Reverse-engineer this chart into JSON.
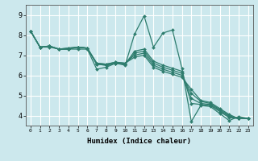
{
  "xlabel": "Humidex (Indice chaleur)",
  "bg_color": "#cce8ed",
  "grid_color": "#ffffff",
  "line_color": "#2e7d6e",
  "xlim": [
    -0.5,
    23.5
  ],
  "ylim": [
    3.5,
    9.5
  ],
  "series": [
    [
      8.2,
      7.4,
      7.4,
      7.3,
      7.3,
      7.3,
      7.3,
      6.3,
      6.4,
      6.6,
      6.5,
      8.05,
      8.95,
      7.4,
      8.1,
      8.25,
      6.35,
      3.7,
      4.5,
      4.45,
      4.1,
      3.75,
      3.95,
      3.85
    ],
    [
      8.2,
      7.4,
      7.45,
      7.3,
      7.3,
      7.4,
      7.35,
      6.55,
      6.5,
      6.6,
      6.55,
      7.2,
      7.3,
      6.7,
      6.5,
      6.35,
      6.2,
      4.6,
      4.55,
      4.5,
      4.2,
      3.9,
      3.85,
      3.85
    ],
    [
      8.2,
      7.4,
      7.45,
      7.3,
      7.3,
      7.4,
      7.35,
      6.55,
      6.5,
      6.6,
      6.55,
      7.1,
      7.2,
      6.6,
      6.4,
      6.25,
      6.1,
      4.85,
      4.6,
      4.55,
      4.25,
      3.95,
      3.85,
      3.85
    ],
    [
      8.2,
      7.4,
      7.45,
      7.3,
      7.35,
      7.4,
      7.35,
      6.6,
      6.55,
      6.65,
      6.6,
      7.0,
      7.1,
      6.5,
      6.3,
      6.15,
      6.0,
      5.1,
      4.7,
      4.6,
      4.3,
      4.0,
      3.85,
      3.85
    ],
    [
      8.2,
      7.4,
      7.45,
      7.3,
      7.35,
      7.4,
      7.35,
      6.6,
      6.55,
      6.65,
      6.6,
      6.9,
      7.0,
      6.4,
      6.2,
      6.05,
      5.9,
      5.3,
      4.75,
      4.65,
      4.35,
      4.05,
      3.85,
      3.85
    ]
  ]
}
